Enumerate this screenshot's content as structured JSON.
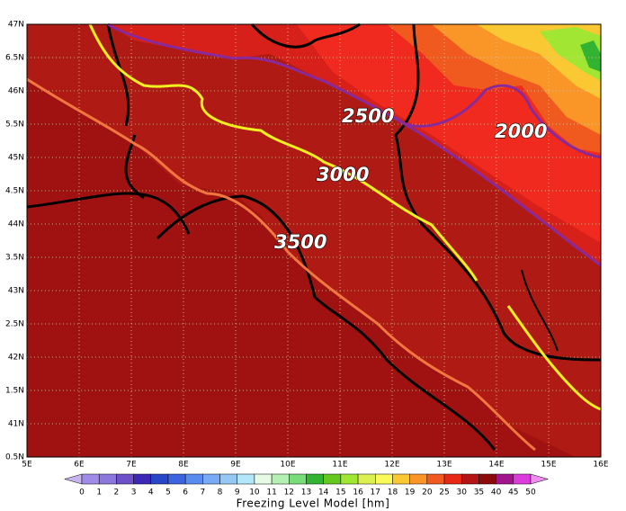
{
  "map": {
    "lon_labels": [
      "5E",
      "6E",
      "7E",
      "8E",
      "9E",
      "10E",
      "11E",
      "12E",
      "13E",
      "14E",
      "15E",
      "16E"
    ],
    "lat_labels": [
      "47N",
      "6.5N",
      "46N",
      "5.5N",
      "45N",
      "4.5N",
      "44N",
      "3.5N",
      "43N",
      "2.5N",
      "42N",
      "1.5N",
      "41N",
      "0.5N"
    ],
    "contour_labels": [
      "2500",
      "3000",
      "3500",
      "2000"
    ],
    "colorbar": {
      "title": "Freezing Level Model [hm]",
      "labels": [
        0,
        1,
        2,
        3,
        4,
        5,
        6,
        7,
        8,
        9,
        10,
        11,
        12,
        13,
        14,
        15,
        16,
        17,
        18,
        19,
        20,
        25,
        30,
        35,
        40,
        45,
        50
      ],
      "colors": [
        "#c8b4f0",
        "#a08ce6",
        "#8c78dc",
        "#6e50c8",
        "#3c28b4",
        "#2846c8",
        "#3c64dc",
        "#5a8cf0",
        "#78aaf5",
        "#96c8f5",
        "#b4e6fa",
        "#e6fae6",
        "#b4f0b4",
        "#78dc78",
        "#32b432",
        "#64c81e",
        "#a0e632",
        "#dcf050",
        "#fafa5a",
        "#fac832",
        "#fa9628",
        "#f05a1e",
        "#e62814",
        "#b41414",
        "#8c0a0a",
        "#a0148c",
        "#dc3cdc",
        "#f08cf0"
      ]
    }
  }
}
